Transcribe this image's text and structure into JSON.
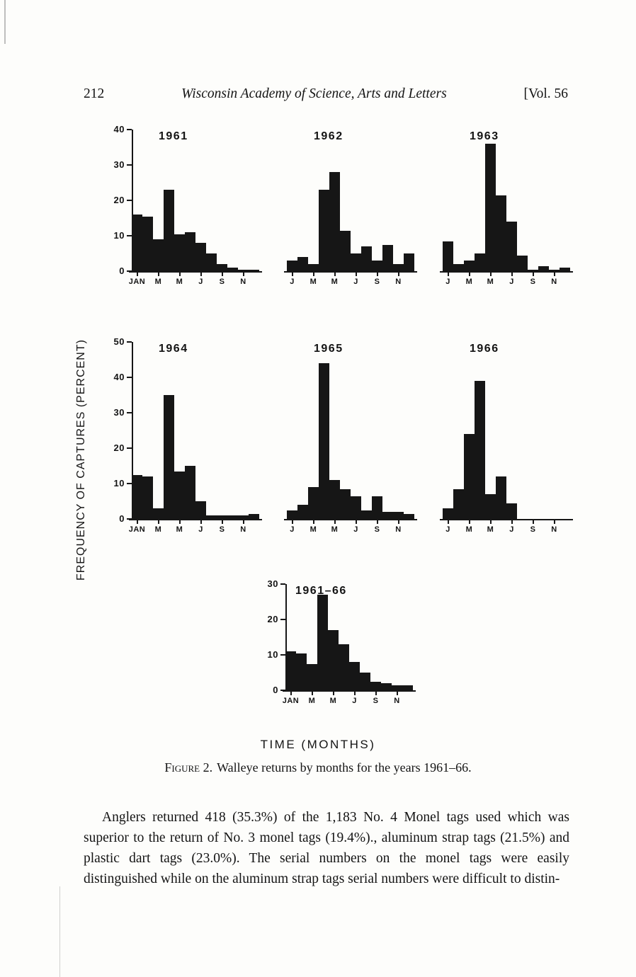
{
  "header": {
    "page_number": "212",
    "journal_title": "Wisconsin Academy of Science, Arts and Letters",
    "volume": "[Vol. 56"
  },
  "figure": {
    "ylabel": "FREQUENCY OF CAPTURES (PERCENT)",
    "xlabel": "TIME (MONTHS)",
    "caption_label": "Figure 2.",
    "caption": "Walleye returns by months for the years 1961–66."
  },
  "body": {
    "paragraph": "Anglers returned 418 (35.3%) of the 1,183 No. 4 Monel tags used which was superior to the return of No. 3 monel tags (19.4%)., aluminum strap tags (21.5%) and plastic dart tags (23.0%). The serial numbers on the monel tags were easily distinguished while on the aluminum strap tags serial numbers were difficult to distin-"
  },
  "chart_data": [
    {
      "type": "bar",
      "title": "1961",
      "categories": [
        "Jan",
        "Feb",
        "Mar",
        "Apr",
        "May",
        "Jun",
        "Jul",
        "Aug",
        "Sep",
        "Oct",
        "Nov",
        "Dec"
      ],
      "values": [
        16,
        15.5,
        9,
        23,
        10.5,
        11,
        8,
        5,
        2,
        1,
        0.5,
        0.5
      ],
      "ylim": [
        0,
        40
      ],
      "yticks": [
        0,
        10,
        20,
        30,
        40
      ],
      "show_y_axis": true,
      "x_tick_labels": [
        "JAN",
        "M",
        "M",
        "J",
        "S",
        "N"
      ],
      "x_tick_positions": [
        0,
        2,
        4,
        6,
        8,
        10
      ],
      "bar_color": "#161616",
      "ylabel": "",
      "xlabel": ""
    },
    {
      "type": "bar",
      "title": "1962",
      "categories": [
        "Jan",
        "Feb",
        "Mar",
        "Apr",
        "May",
        "Jun",
        "Jul",
        "Aug",
        "Sep",
        "Oct",
        "Nov",
        "Dec"
      ],
      "values": [
        3,
        4,
        2,
        23,
        28,
        11.5,
        5,
        7,
        3,
        7.5,
        2,
        5
      ],
      "ylim": [
        0,
        40
      ],
      "yticks": [
        0,
        10,
        20,
        30,
        40
      ],
      "show_y_axis": false,
      "x_tick_labels": [
        "J",
        "M",
        "M",
        "J",
        "S",
        "N"
      ],
      "x_tick_positions": [
        0,
        2,
        4,
        6,
        8,
        10
      ],
      "bar_color": "#161616",
      "ylabel": "",
      "xlabel": ""
    },
    {
      "type": "bar",
      "title": "1963",
      "categories": [
        "Jan",
        "Feb",
        "Mar",
        "Apr",
        "May",
        "Jun",
        "Jul",
        "Aug",
        "Sep",
        "Oct",
        "Nov",
        "Dec"
      ],
      "values": [
        8.5,
        2,
        3,
        5,
        36,
        21.5,
        14,
        4.5,
        0.5,
        1.5,
        0.5,
        1
      ],
      "ylim": [
        0,
        40
      ],
      "yticks": [
        0,
        10,
        20,
        30,
        40
      ],
      "show_y_axis": false,
      "x_tick_labels": [
        "J",
        "M",
        "M",
        "J",
        "S",
        "N"
      ],
      "x_tick_positions": [
        0,
        2,
        4,
        6,
        8,
        10
      ],
      "bar_color": "#161616",
      "ylabel": "",
      "xlabel": ""
    },
    {
      "type": "bar",
      "title": "1964",
      "categories": [
        "Jan",
        "Feb",
        "Mar",
        "Apr",
        "May",
        "Jun",
        "Jul",
        "Aug",
        "Sep",
        "Oct",
        "Nov",
        "Dec"
      ],
      "values": [
        12.5,
        12,
        3,
        35,
        13.5,
        15,
        5,
        1,
        1,
        1,
        1,
        1.5
      ],
      "ylim": [
        0,
        50
      ],
      "yticks": [
        0,
        10,
        20,
        30,
        40,
        50
      ],
      "show_y_axis": true,
      "x_tick_labels": [
        "JAN",
        "M",
        "M",
        "J",
        "S",
        "N"
      ],
      "x_tick_positions": [
        0,
        2,
        4,
        6,
        8,
        10
      ],
      "bar_color": "#161616",
      "ylabel": "",
      "xlabel": ""
    },
    {
      "type": "bar",
      "title": "1965",
      "categories": [
        "Jan",
        "Feb",
        "Mar",
        "Apr",
        "May",
        "Jun",
        "Jul",
        "Aug",
        "Sep",
        "Oct",
        "Nov",
        "Dec"
      ],
      "values": [
        2.5,
        4,
        9,
        44,
        11,
        8.5,
        6.5,
        2.5,
        6.5,
        2,
        2,
        1.5
      ],
      "ylim": [
        0,
        50
      ],
      "yticks": [
        0,
        10,
        20,
        30,
        40,
        50
      ],
      "show_y_axis": false,
      "x_tick_labels": [
        "J",
        "M",
        "M",
        "J",
        "S",
        "N"
      ],
      "x_tick_positions": [
        0,
        2,
        4,
        6,
        8,
        10
      ],
      "bar_color": "#161616",
      "ylabel": "",
      "xlabel": ""
    },
    {
      "type": "bar",
      "title": "1966",
      "categories": [
        "Jan",
        "Feb",
        "Mar",
        "Apr",
        "May",
        "Jun",
        "Jul",
        "Aug",
        "Sep",
        "Oct",
        "Nov",
        "Dec"
      ],
      "values": [
        3,
        8.5,
        24,
        39,
        7,
        12,
        4.5,
        0,
        0,
        0,
        0,
        0
      ],
      "ylim": [
        0,
        50
      ],
      "yticks": [
        0,
        10,
        20,
        30,
        40,
        50
      ],
      "show_y_axis": false,
      "x_tick_labels": [
        "J",
        "M",
        "M",
        "J",
        "S",
        "N"
      ],
      "x_tick_positions": [
        0,
        2,
        4,
        6,
        8,
        10
      ],
      "bar_color": "#161616",
      "ylabel": "",
      "xlabel": ""
    },
    {
      "type": "bar",
      "title": "1961–66",
      "categories": [
        "Jan",
        "Feb",
        "Mar",
        "Apr",
        "May",
        "Jun",
        "Jul",
        "Aug",
        "Sep",
        "Oct",
        "Nov",
        "Dec"
      ],
      "values": [
        11,
        10.5,
        7.5,
        27,
        17,
        13,
        8,
        5,
        2.5,
        2,
        1.5,
        1.5
      ],
      "ylim": [
        0,
        30
      ],
      "yticks": [
        0,
        10,
        20,
        30
      ],
      "show_y_axis": true,
      "x_tick_labels": [
        "JAN",
        "M",
        "M",
        "J",
        "S",
        "N"
      ],
      "x_tick_positions": [
        0,
        2,
        4,
        6,
        8,
        10
      ],
      "bar_color": "#161616",
      "ylabel": "",
      "xlabel": ""
    }
  ]
}
